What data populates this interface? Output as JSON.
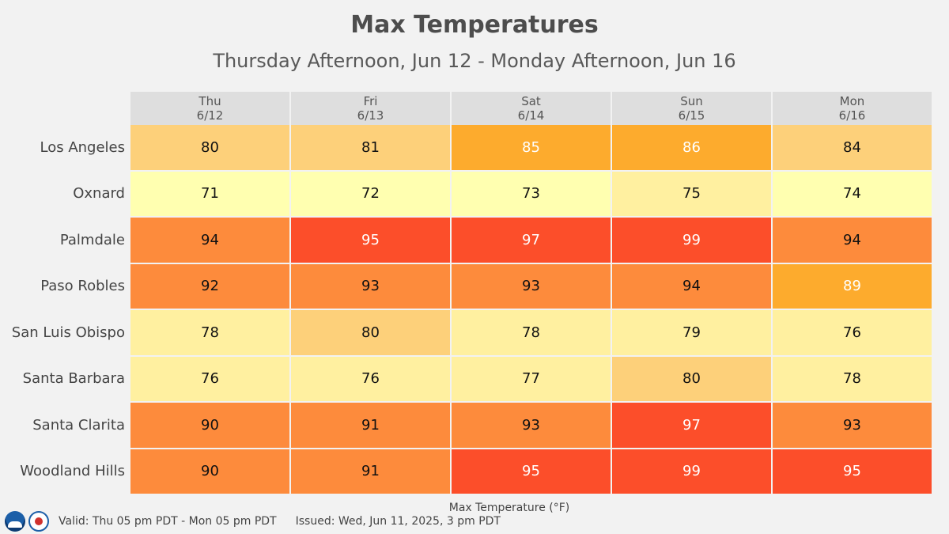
{
  "chart_data": {
    "type": "heatmap",
    "title": "Max Temperatures",
    "subtitle": "Thursday Afternoon, Jun 12 - Monday Afternoon, Jun 16",
    "columns": [
      {
        "day": "Thu",
        "date": "6/12"
      },
      {
        "day": "Fri",
        "date": "6/13"
      },
      {
        "day": "Sat",
        "date": "6/14"
      },
      {
        "day": "Sun",
        "date": "6/15"
      },
      {
        "day": "Mon",
        "date": "6/16"
      }
    ],
    "rows": [
      "Los Angeles",
      "Oxnard",
      "Palmdale",
      "Paso Robles",
      "San Luis Obispo",
      "Santa Barbara",
      "Santa Clarita",
      "Woodland Hills"
    ],
    "values": [
      [
        80,
        81,
        85,
        86,
        84
      ],
      [
        71,
        72,
        73,
        75,
        74
      ],
      [
        94,
        95,
        97,
        99,
        94
      ],
      [
        92,
        93,
        93,
        94,
        89
      ],
      [
        78,
        80,
        78,
        79,
        76
      ],
      [
        76,
        76,
        77,
        80,
        78
      ],
      [
        90,
        91,
        93,
        97,
        93
      ],
      [
        90,
        91,
        95,
        99,
        95
      ]
    ],
    "cell_colors": [
      [
        "#fdd07a",
        "#fdd07a",
        "#fdab2d",
        "#fdab2d",
        "#fdd07a"
      ],
      [
        "#ffffb0",
        "#ffffb0",
        "#ffffb0",
        "#fff0a0",
        "#ffffb0"
      ],
      [
        "#fd8b3c",
        "#fc4e2a",
        "#fc4e2a",
        "#fc4e2a",
        "#fd8b3c"
      ],
      [
        "#fd8b3c",
        "#fd8b3c",
        "#fd8b3c",
        "#fd8b3c",
        "#fdab2d"
      ],
      [
        "#fff0a0",
        "#fdd07a",
        "#fff0a0",
        "#fff0a0",
        "#fff0a0"
      ],
      [
        "#fff0a0",
        "#fff0a0",
        "#fff0a0",
        "#fdd07a",
        "#fff0a0"
      ],
      [
        "#fd8b3c",
        "#fd8b3c",
        "#fd8b3c",
        "#fc4e2a",
        "#fd8b3c"
      ],
      [
        "#fd8b3c",
        "#fd8b3c",
        "#fc4e2a",
        "#fc4e2a",
        "#fc4e2a"
      ]
    ],
    "text_colors": [
      [
        "#111111",
        "#111111",
        "#ffffff",
        "#ffffff",
        "#111111"
      ],
      [
        "#111111",
        "#111111",
        "#111111",
        "#111111",
        "#111111"
      ],
      [
        "#111111",
        "#ffffff",
        "#ffffff",
        "#ffffff",
        "#111111"
      ],
      [
        "#111111",
        "#111111",
        "#111111",
        "#111111",
        "#ffffff"
      ],
      [
        "#111111",
        "#111111",
        "#111111",
        "#111111",
        "#111111"
      ],
      [
        "#111111",
        "#111111",
        "#111111",
        "#111111",
        "#111111"
      ],
      [
        "#111111",
        "#111111",
        "#111111",
        "#ffffff",
        "#111111"
      ],
      [
        "#111111",
        "#111111",
        "#ffffff",
        "#ffffff",
        "#ffffff"
      ]
    ],
    "legend_caption": "Max Temperature (°F)"
  },
  "footer": {
    "valid": "Valid: Thu 05 pm PDT - Mon 05 pm PDT",
    "issued": "Issued: Wed, Jun 11, 2025, 3 pm PDT"
  }
}
